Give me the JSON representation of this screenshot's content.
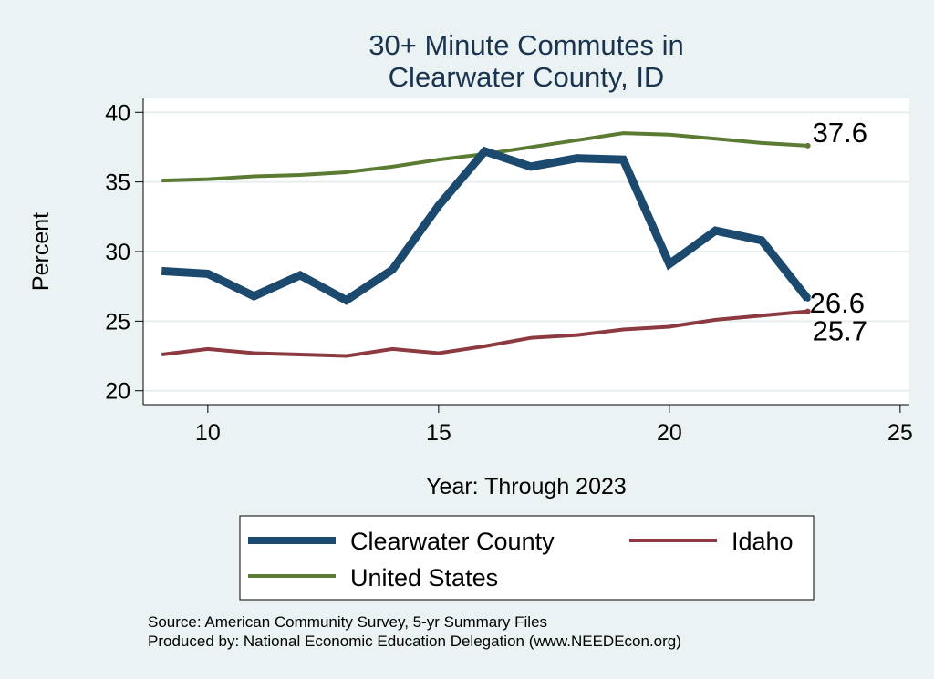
{
  "chart_data": {
    "type": "line",
    "title_lines": [
      "30+ Minute Commutes in",
      "Clearwater County, ID"
    ],
    "xlabel": "Year: Through 2023",
    "ylabel": "Percent",
    "xlim": [
      8.6,
      25.2
    ],
    "ylim": [
      19,
      41
    ],
    "xticks": [
      10,
      15,
      20,
      25
    ],
    "yticks": [
      20,
      25,
      30,
      35,
      40
    ],
    "x": [
      9,
      10,
      11,
      12,
      13,
      14,
      15,
      16,
      17,
      18,
      19,
      20,
      21,
      22,
      23
    ],
    "series": [
      {
        "name": "Clearwater County",
        "color": "#1c4a6e",
        "values": [
          28.6,
          28.4,
          26.8,
          28.3,
          26.5,
          28.7,
          33.3,
          37.2,
          36.1,
          36.7,
          36.6,
          29.1,
          31.5,
          30.8,
          26.6
        ],
        "end_label": "26.6"
      },
      {
        "name": "Idaho",
        "color": "#8c3a3f",
        "values": [
          22.6,
          23.0,
          22.7,
          22.6,
          22.5,
          23.0,
          22.7,
          23.2,
          23.8,
          24.0,
          24.4,
          24.6,
          25.1,
          25.4,
          25.7
        ],
        "end_label": "25.7"
      },
      {
        "name": "United States",
        "color": "#5b7b32",
        "values": [
          35.1,
          35.2,
          35.4,
          35.5,
          35.7,
          36.1,
          36.6,
          37.0,
          37.5,
          38.0,
          38.5,
          38.4,
          38.1,
          37.8,
          37.6
        ],
        "end_label": "37.6"
      }
    ],
    "legend": {
      "position": "bottom",
      "entries": [
        "Clearwater County",
        "Idaho",
        "United States"
      ]
    },
    "grid": true
  },
  "footer": {
    "source_line": "Source: American Community Survey, 5-yr Summary Files",
    "produced_line": "Produced by: National Economic Education Delegation (www.NEEDEcon.org)"
  }
}
